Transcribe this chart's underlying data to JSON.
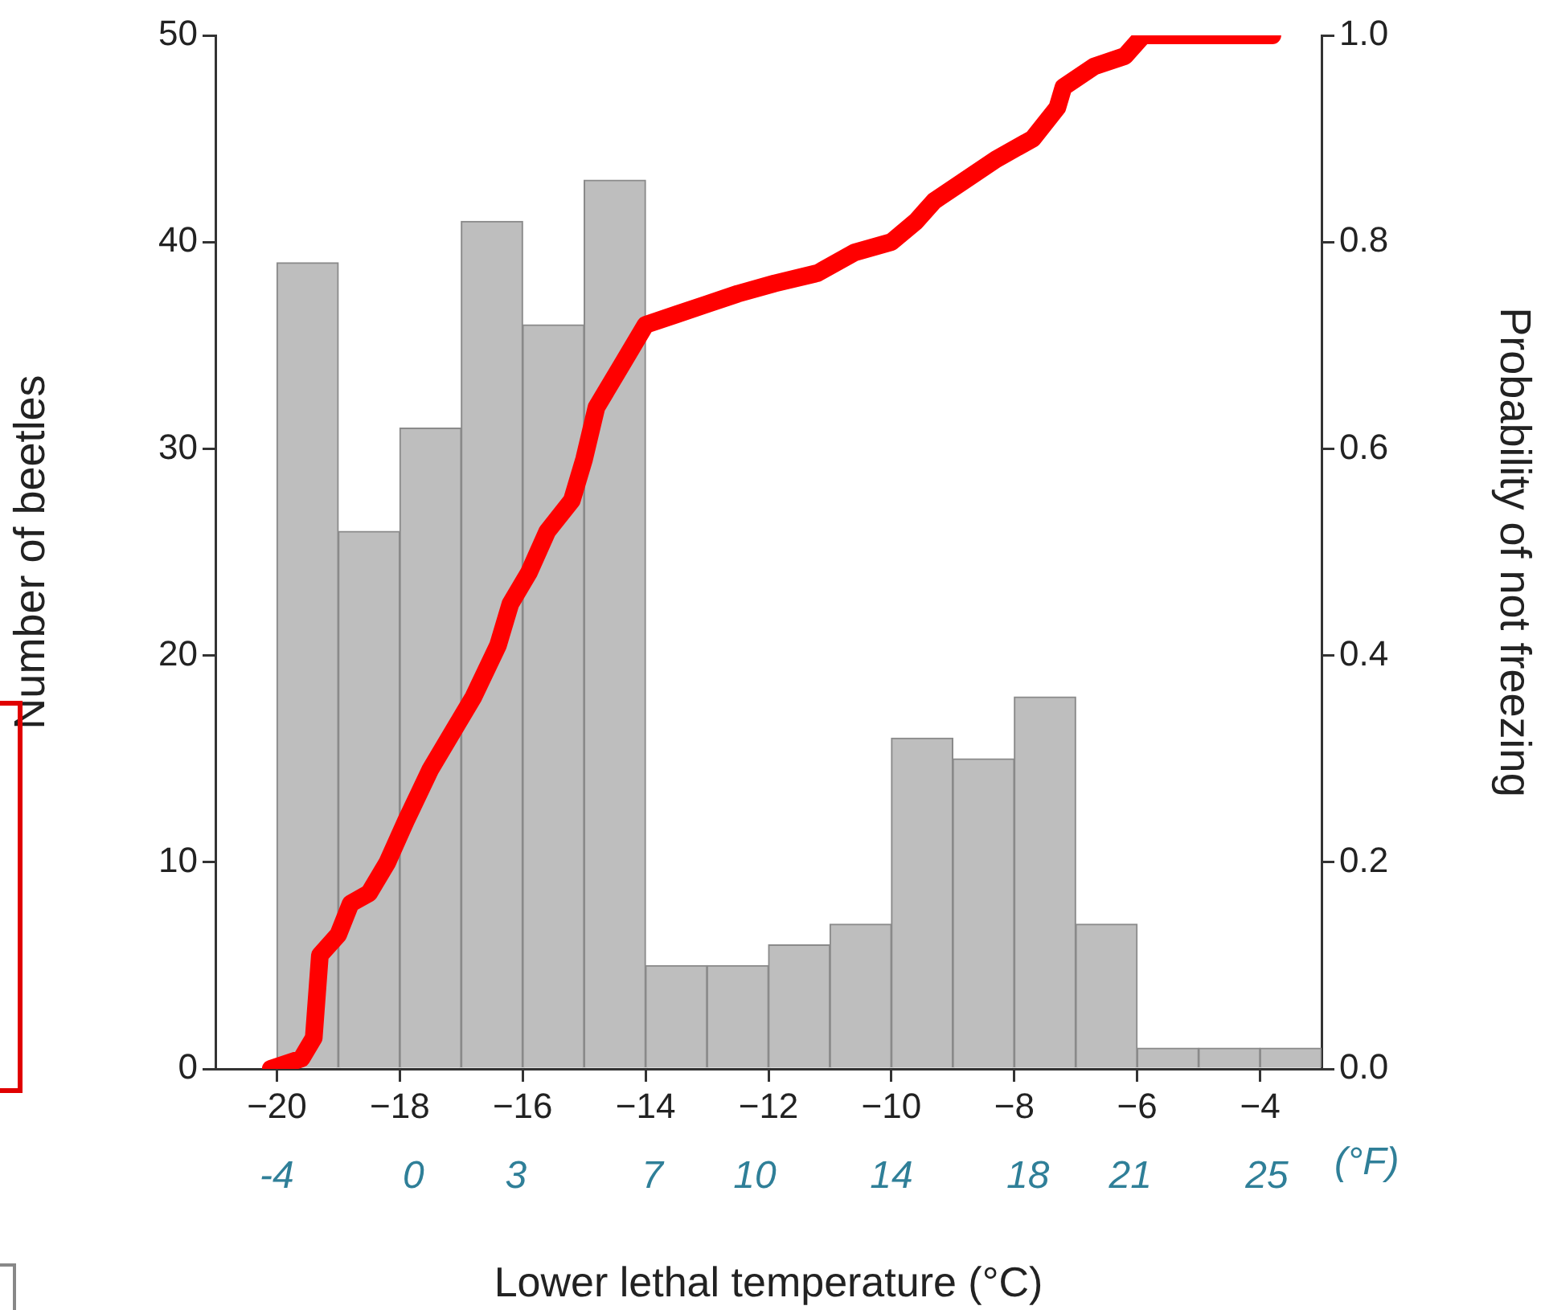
{
  "chart_data": {
    "type": "histogram",
    "xlabel": "Lower lethal temperature (°C)",
    "ylabel": "Number of beetles",
    "y2label": "Probability of not freezing",
    "x2label": "(°F)",
    "xlim": [
      -21,
      -3
    ],
    "xticks": [
      -20,
      -18,
      -16,
      -14,
      -12,
      -10,
      -8,
      -6,
      -4
    ],
    "x2lim": [
      -5.8,
      26.6
    ],
    "x2ticks": [
      -4,
      0,
      3,
      7,
      10,
      14,
      18,
      21,
      25
    ],
    "ylim": [
      0,
      50
    ],
    "yticks": [
      0,
      10,
      20,
      30,
      40,
      50
    ],
    "y2lim": [
      0,
      1
    ],
    "y2ticks": [
      {
        "value": 0,
        "label": "0.0"
      },
      0.2,
      0.4,
      0.6,
      0.8,
      {
        "value": 1,
        "label": "1.0"
      }
    ],
    "series": [
      {
        "color": "#bebebe",
        "bins": [
          -20,
          -19,
          -18,
          -17,
          -16,
          -15,
          -14,
          -13,
          -12,
          -11,
          -10,
          -9,
          -8,
          -7,
          -6,
          -5,
          -4,
          -3
        ],
        "values": [
          39,
          26,
          31,
          41,
          36,
          43,
          5,
          5,
          6,
          7,
          16,
          15,
          18,
          7,
          1,
          1,
          1
        ]
      },
      {
        "type": "line",
        "axis": "y2",
        "color": "#ff0000",
        "x": [
          -20.1,
          -19.6,
          -19.4,
          -19.3,
          -19.0,
          -18.8,
          -18.5,
          -18.2,
          -17.9,
          -17.5,
          -17.1,
          -16.8,
          -16.4,
          -16.2,
          -15.9,
          -15.6,
          -15.2,
          -15.0,
          -14.8,
          -14.4,
          -14.2,
          -14.0,
          -13.5,
          -13.0,
          -12.5,
          -11.9,
          -11.2,
          -10.6,
          -10.0,
          -9.6,
          -9.3,
          -8.8,
          -8.3,
          -7.7,
          -7.3,
          -7.2,
          -6.7,
          -6.2,
          -5.9,
          -5.1,
          -4.3,
          -3.8
        ],
        "values": [
          0,
          0.01,
          0.03,
          0.11,
          0.13,
          0.16,
          0.17,
          0.2,
          0.24,
          0.29,
          0.33,
          0.36,
          0.41,
          0.45,
          0.48,
          0.52,
          0.55,
          0.59,
          0.64,
          0.68,
          0.7,
          0.72,
          0.73,
          0.74,
          0.75,
          0.76,
          0.77,
          0.79,
          0.8,
          0.82,
          0.84,
          0.86,
          0.88,
          0.9,
          0.93,
          0.95,
          0.97,
          0.98,
          1,
          1,
          1,
          1
        ]
      }
    ]
  }
}
